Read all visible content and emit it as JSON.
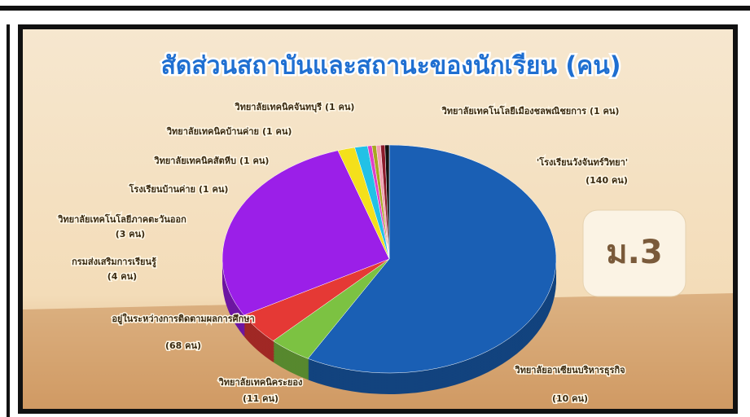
{
  "chart_data": {
    "type": "pie3d",
    "title": "สัดส่วนสถาบันและสถานะของนักเรียน (คน)",
    "badge": "ม.3",
    "categories": [
      "'โรงเรียนวังจันทร์วิทยา'",
      "วิทยาลัยอาเซียนบริหารธุรกิจ",
      "วิทยาลัยเทคนิคระยอง",
      "อยู่ในระหว่างการติดตามผลการศึกษา",
      "กรมส่งเสริมการเรียนรู้",
      "วิทยาลัยเทคโนโลยีภาคตะวันออก",
      "โรงเรียนบ้านค่าย",
      "วิทยาลัยเทคนิคสัตหีบ",
      "วิทยาลัยเทคนิคบ้านค่าย",
      "วิทยาลัยเทคนิคจันทบุรี",
      "วิทยาลัยเทคโนโลยีเมืองชลพณิชยการ"
    ],
    "values": [
      140,
      10,
      11,
      68,
      4,
      3,
      1,
      1,
      1,
      1,
      1
    ],
    "value_labels": [
      "(140 คน)",
      "(10 คน)",
      "(11 คน)",
      "(68 คน)",
      "(4 คน)",
      "(3 คน)",
      "(1 คน)",
      "(1 คน)",
      "(1 คน)",
      "(1 คน)",
      "(1 คน)"
    ],
    "colors": [
      "#1a5fb4",
      "#7cc242",
      "#e53935",
      "#9b1fe8",
      "#f4e01b",
      "#22c1e6",
      "#e040c8",
      "#a8a820",
      "#f2a0b0",
      "#8b1a2a",
      "#111111"
    ]
  }
}
